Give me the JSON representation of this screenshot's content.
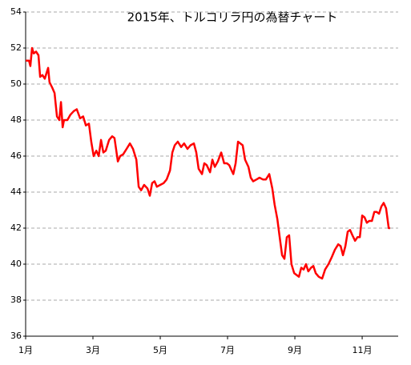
{
  "chart_data": {
    "type": "line",
    "title": "2015年、トルコリラ円の為替チャート",
    "x": [
      1.0,
      1.1,
      1.14,
      1.19,
      1.24,
      1.31,
      1.38,
      1.43,
      1.5,
      1.57,
      1.67,
      1.71,
      1.79,
      1.86,
      1.93,
      2.0,
      2.05,
      2.1,
      2.14,
      2.24,
      2.33,
      2.43,
      2.52,
      2.62,
      2.71,
      2.79,
      2.88,
      2.95,
      3.02,
      3.1,
      3.17,
      3.24,
      3.31,
      3.38,
      3.48,
      3.57,
      3.64,
      3.74,
      3.81,
      3.9,
      4.0,
      4.1,
      4.19,
      4.29,
      4.36,
      4.43,
      4.52,
      4.62,
      4.69,
      4.76,
      4.83,
      4.9,
      5.0,
      5.1,
      5.19,
      5.29,
      5.36,
      5.43,
      5.52,
      5.62,
      5.71,
      5.81,
      5.9,
      6.0,
      6.07,
      6.14,
      6.24,
      6.31,
      6.38,
      6.48,
      6.55,
      6.62,
      6.71,
      6.81,
      6.9,
      6.98,
      7.05,
      7.12,
      7.17,
      7.24,
      7.31,
      7.38,
      7.45,
      7.52,
      7.62,
      7.69,
      7.76,
      7.86,
      7.95,
      8.05,
      8.14,
      8.24,
      8.33,
      8.4,
      8.48,
      8.55,
      8.62,
      8.69,
      8.76,
      8.83,
      8.9,
      8.98,
      9.05,
      9.12,
      9.19,
      9.26,
      9.33,
      9.4,
      9.48,
      9.55,
      9.62,
      9.71,
      9.81,
      9.9,
      10.0,
      10.1,
      10.19,
      10.29,
      10.36,
      10.43,
      10.5,
      10.57,
      10.64,
      10.71,
      10.79,
      10.86,
      10.93,
      11.0,
      11.07,
      11.14,
      11.21,
      11.29,
      11.36,
      11.43,
      11.5,
      11.57,
      11.64,
      11.71,
      11.79,
      11.83
    ],
    "series": [
      {
        "color": "#ff0000",
        "values": [
          51.3,
          51.3,
          51.0,
          52.0,
          51.7,
          51.8,
          51.6,
          50.4,
          50.5,
          50.3,
          50.9,
          50.1,
          49.8,
          49.5,
          48.2,
          48.0,
          49.0,
          47.6,
          48.0,
          48.0,
          48.3,
          48.5,
          48.6,
          48.1,
          48.2,
          47.7,
          47.8,
          46.8,
          46.0,
          46.3,
          46.0,
          46.9,
          46.2,
          46.3,
          46.9,
          47.1,
          47.0,
          45.7,
          46.0,
          46.1,
          46.4,
          46.7,
          46.4,
          45.8,
          44.3,
          44.1,
          44.4,
          44.2,
          43.8,
          44.5,
          44.6,
          44.3,
          44.4,
          44.5,
          44.7,
          45.2,
          46.2,
          46.6,
          46.8,
          46.5,
          46.7,
          46.4,
          46.6,
          46.7,
          46.2,
          45.3,
          45.0,
          45.6,
          45.5,
          45.1,
          45.8,
          45.4,
          45.7,
          46.2,
          45.6,
          45.6,
          45.5,
          45.2,
          45.0,
          45.6,
          46.8,
          46.7,
          46.6,
          45.8,
          45.4,
          44.8,
          44.6,
          44.7,
          44.8,
          44.7,
          44.7,
          45.0,
          44.2,
          43.3,
          42.5,
          41.5,
          40.5,
          40.3,
          41.5,
          41.6,
          40.0,
          39.5,
          39.4,
          39.3,
          39.8,
          39.7,
          40.0,
          39.6,
          39.8,
          39.9,
          39.5,
          39.3,
          39.2,
          39.7,
          40.0,
          40.4,
          40.8,
          41.1,
          41.0,
          40.5,
          41.0,
          41.8,
          41.9,
          41.6,
          41.3,
          41.5,
          41.5,
          42.7,
          42.6,
          42.3,
          42.4,
          42.4,
          42.9,
          42.9,
          42.8,
          43.2,
          43.4,
          43.1,
          42.0,
          42.0
        ]
      }
    ],
    "xlim": [
      1,
      12.07
    ],
    "xticks": [
      {
        "value": 1,
        "label": "1月"
      },
      {
        "value": 3,
        "label": "3月"
      },
      {
        "value": 5,
        "label": "5月"
      },
      {
        "value": 7,
        "label": "7月"
      },
      {
        "value": 9,
        "label": "9月"
      },
      {
        "value": 11,
        "label": "11月"
      }
    ],
    "ylim": [
      36,
      54
    ],
    "yticks": [
      36,
      38,
      40,
      42,
      44,
      46,
      48,
      50,
      52,
      54
    ],
    "grid": true
  }
}
